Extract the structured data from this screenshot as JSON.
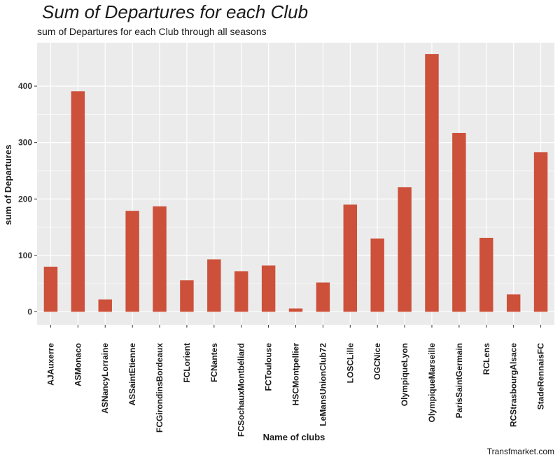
{
  "title": "Sum of Departures for each Club",
  "subtitle": "sum of Departures for each Club through all seasons",
  "caption": "Transfmarket.com",
  "colors": {
    "bar": "#cd503a",
    "panel": "#ebebeb",
    "grid": "#ffffff"
  },
  "chart_data": {
    "type": "bar",
    "xlabel": "Name of clubs",
    "ylabel": "sum of Departures",
    "ylim": [
      -23,
      477
    ],
    "yticks": [
      0,
      100,
      200,
      300,
      400
    ],
    "grid": true,
    "categories": [
      "AJAuxerre",
      "ASMonaco",
      "ASNancyLorraine",
      "ASSaintEtienne",
      "FCGirondinsBordeaux",
      "FCLorient",
      "FCNantes",
      "FCSochauxMontbéliard",
      "FCToulouse",
      "HSCMontpellier",
      "LeMansUnionClub72",
      "LOSCLille",
      "OGCNice",
      "OlympiqueLyon",
      "OlympiqueMarseille",
      "ParisSaintGermain",
      "RCLens",
      "RCStrasbourgAlsace",
      "StadeRennaisFC"
    ],
    "values": [
      80,
      391,
      22,
      179,
      187,
      56,
      93,
      72,
      82,
      6,
      52,
      190,
      130,
      221,
      457,
      317,
      131,
      31,
      283
    ]
  }
}
